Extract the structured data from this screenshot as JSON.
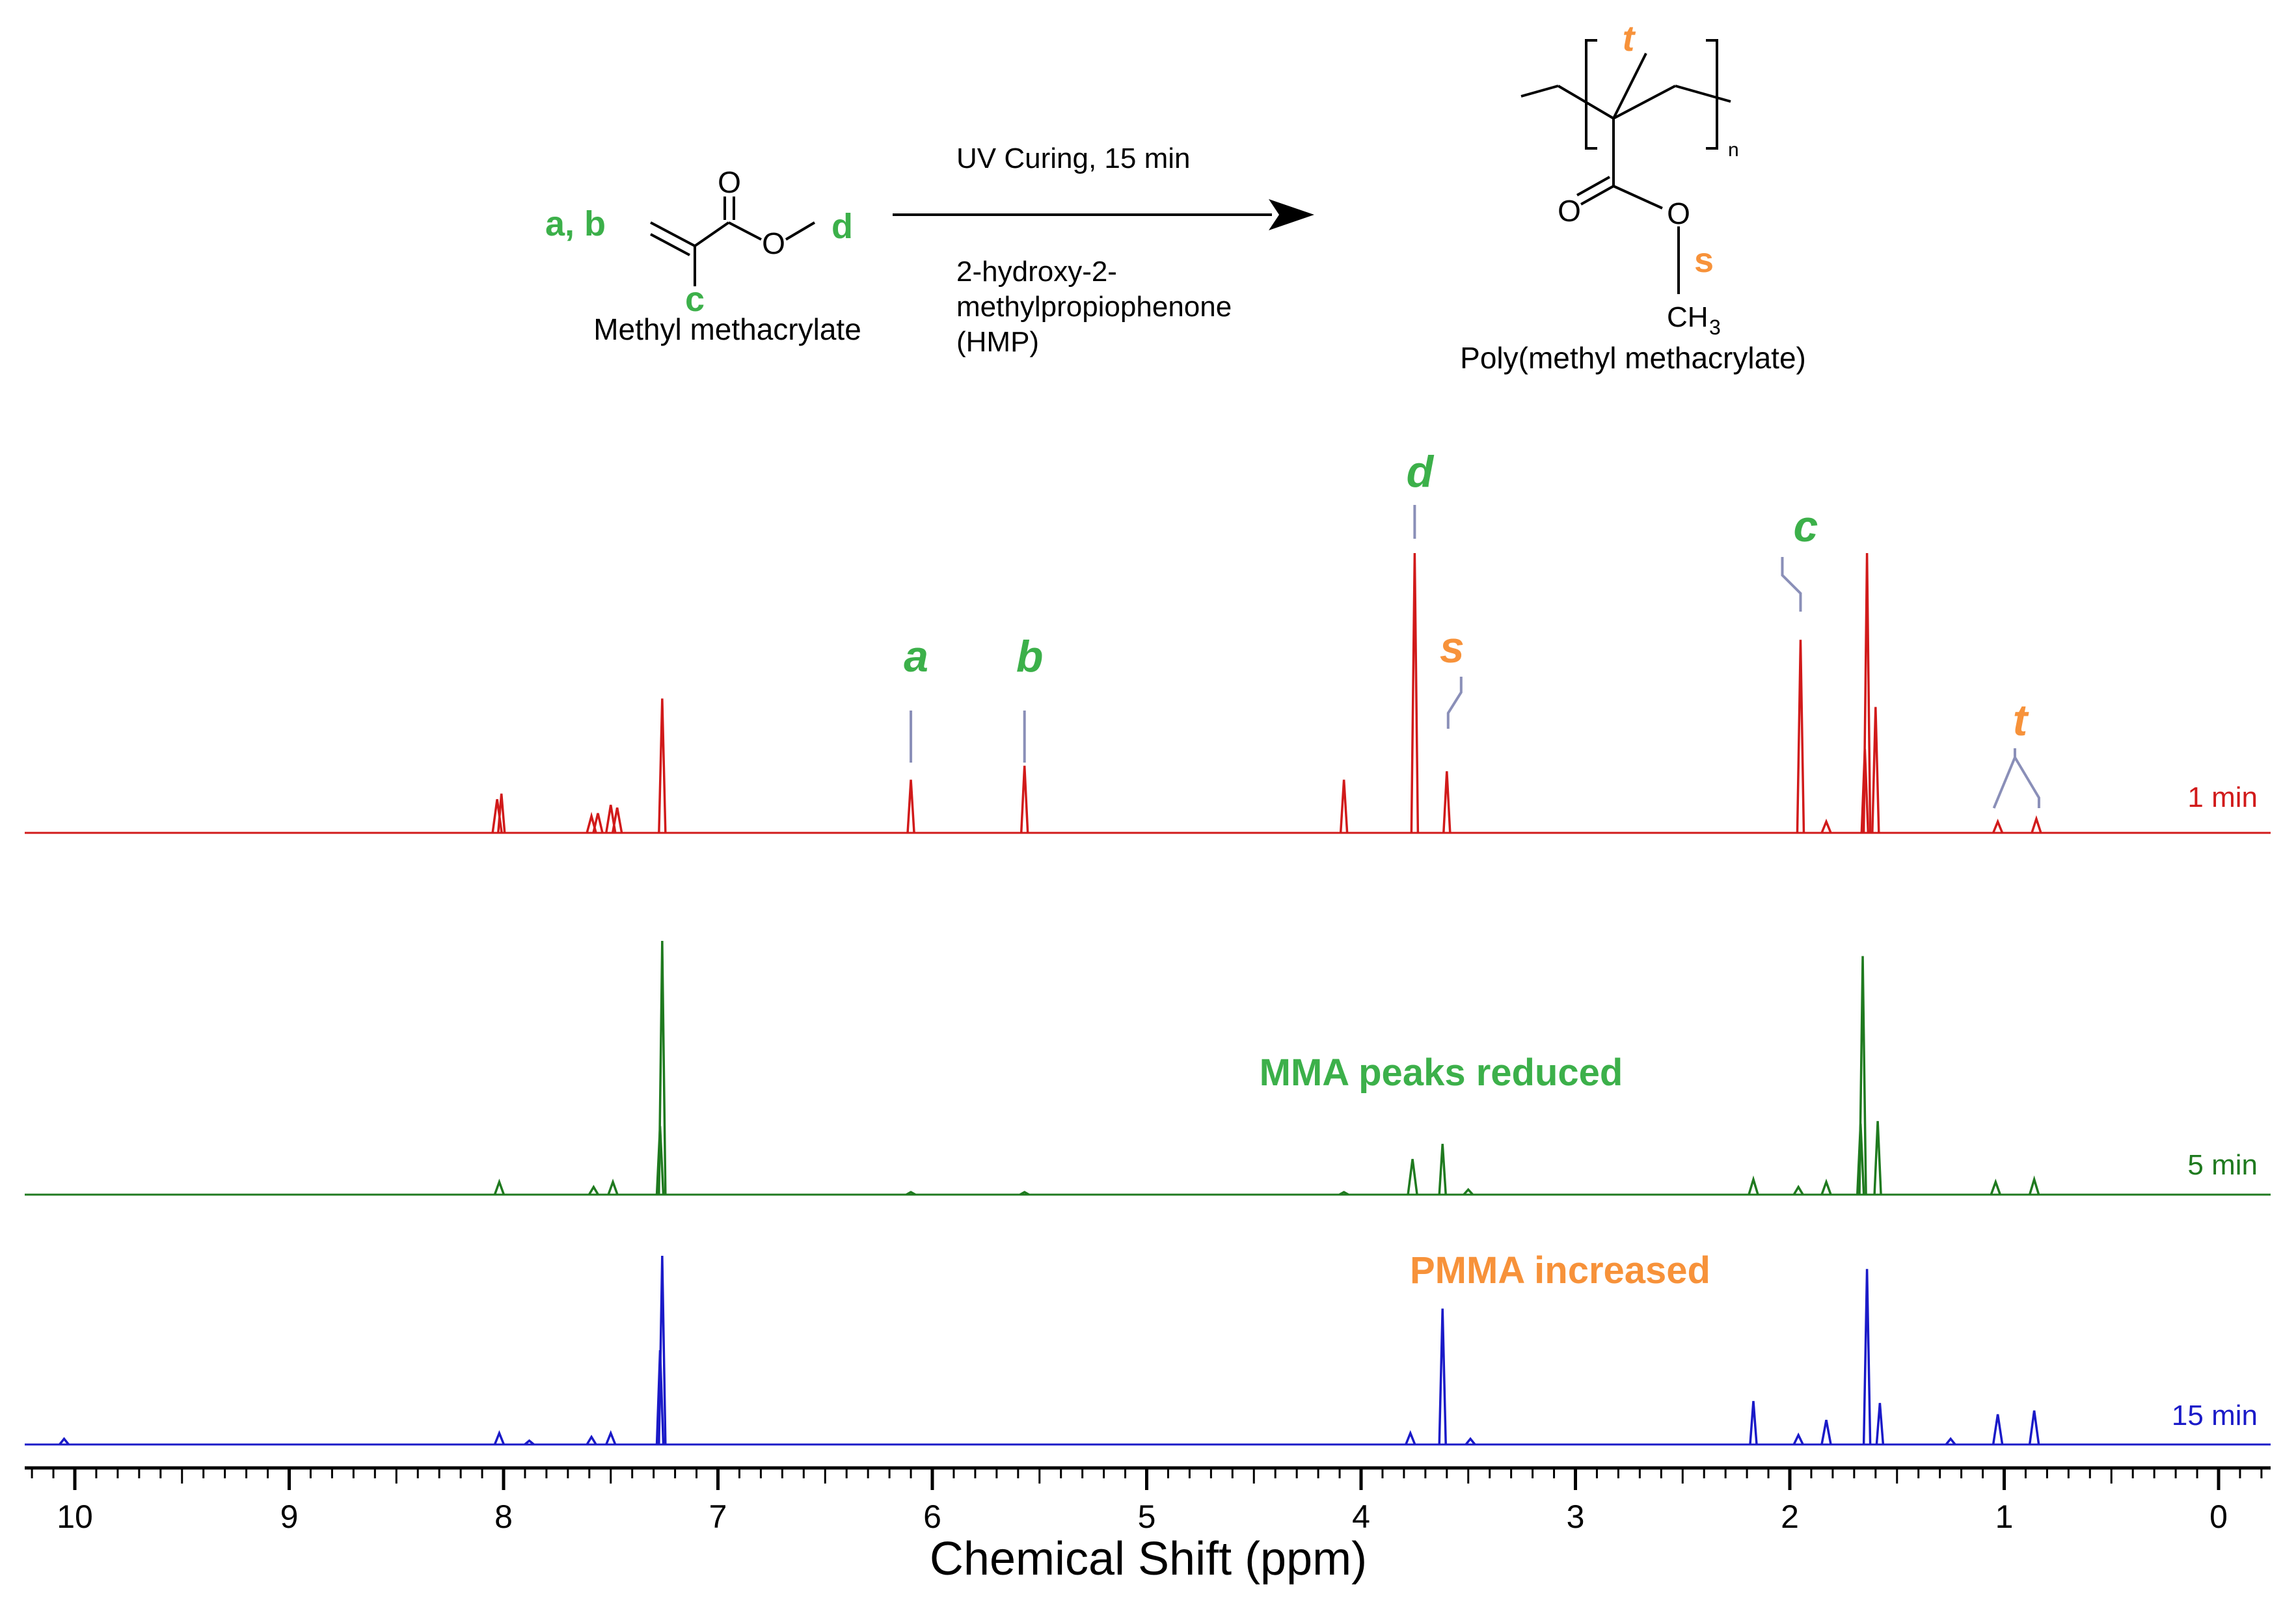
{
  "colors": {
    "red": "#d11a1a",
    "green": "#1f7a1f",
    "blue": "#1a1ac8",
    "label_green": "#3cb04a",
    "label_orange": "#f7923a",
    "leader": "#8a8fb8",
    "axis": "#000000"
  },
  "scheme": {
    "reactant": {
      "name": "Methyl methacrylate",
      "label_ab": "a, b",
      "label_c": "c",
      "label_d": "d",
      "atom_O_carbonyl": "O",
      "atom_O_ester": "O"
    },
    "arrow": {
      "above": "UV Curing, 15 min",
      "below_line1": "2-hydroxy-2-",
      "below_line2": "methylpropiophenone",
      "below_line3": "(HMP)"
    },
    "product": {
      "name": "Poly(methyl methacrylate)",
      "label_t": "t",
      "label_s": "s",
      "subscript_n": "n",
      "atom_O_carbonyl": "O",
      "atom_O_ester": "O",
      "methyl_main": "CH",
      "methyl_sub": "3"
    }
  },
  "chart_data": {
    "type": "line",
    "title": "",
    "xlabel": "Chemical Shift (ppm)",
    "ylabel": "",
    "xlim": [
      10.25,
      -0.25
    ],
    "xticks": [
      10,
      9,
      8,
      7,
      6,
      5,
      4,
      3,
      2,
      1,
      0
    ],
    "x_tick_labels": [
      "10",
      "9",
      "8",
      "7",
      "6",
      "5",
      "4",
      "3",
      "2",
      "1",
      "0"
    ],
    "series": [
      {
        "name": "1 min",
        "color": "#d11a1a",
        "peaks": [
          {
            "ppm": 8.03,
            "height": 0.12
          },
          {
            "ppm": 8.01,
            "height": 0.14
          },
          {
            "ppm": 7.59,
            "height": 0.06
          },
          {
            "ppm": 7.56,
            "height": 0.07
          },
          {
            "ppm": 7.5,
            "height": 0.1
          },
          {
            "ppm": 7.47,
            "height": 0.09
          },
          {
            "ppm": 7.26,
            "height": 0.48
          },
          {
            "ppm": 6.1,
            "height": 0.19
          },
          {
            "ppm": 5.57,
            "height": 0.24
          },
          {
            "ppm": 4.08,
            "height": 0.19
          },
          {
            "ppm": 3.75,
            "height": 1.0
          },
          {
            "ppm": 3.6,
            "height": 0.22
          },
          {
            "ppm": 1.95,
            "height": 0.69
          },
          {
            "ppm": 1.83,
            "height": 0.04
          },
          {
            "ppm": 1.65,
            "height": 0.3
          },
          {
            "ppm": 1.64,
            "height": 1.0
          },
          {
            "ppm": 1.6,
            "height": 0.45
          },
          {
            "ppm": 1.03,
            "height": 0.04
          },
          {
            "ppm": 0.85,
            "height": 0.05
          }
        ],
        "peak_labels": [
          {
            "label": "a",
            "ppm": 6.1,
            "color": "#3cb04a"
          },
          {
            "label": "b",
            "ppm": 5.57,
            "color": "#3cb04a"
          },
          {
            "label": "d",
            "ppm": 3.75,
            "color": "#3cb04a"
          },
          {
            "label": "s",
            "ppm": 3.6,
            "color": "#f7923a"
          },
          {
            "label": "c",
            "ppm": 1.95,
            "color": "#3cb04a"
          },
          {
            "label": "t",
            "ppm": 0.95,
            "color": "#f7923a"
          }
        ]
      },
      {
        "name": "5 min",
        "color": "#1f7a1f",
        "peaks": [
          {
            "ppm": 8.02,
            "height": 0.05
          },
          {
            "ppm": 7.58,
            "height": 0.03
          },
          {
            "ppm": 7.49,
            "height": 0.05
          },
          {
            "ppm": 7.27,
            "height": 0.27
          },
          {
            "ppm": 7.26,
            "height": 1.0
          },
          {
            "ppm": 6.1,
            "height": 0.01
          },
          {
            "ppm": 5.57,
            "height": 0.01
          },
          {
            "ppm": 4.08,
            "height": 0.01
          },
          {
            "ppm": 3.76,
            "height": 0.14
          },
          {
            "ppm": 3.62,
            "height": 0.2
          },
          {
            "ppm": 3.5,
            "height": 0.02
          },
          {
            "ppm": 2.17,
            "height": 0.06
          },
          {
            "ppm": 1.96,
            "height": 0.03
          },
          {
            "ppm": 1.83,
            "height": 0.05
          },
          {
            "ppm": 1.67,
            "height": 0.28
          },
          {
            "ppm": 1.66,
            "height": 0.94
          },
          {
            "ppm": 1.59,
            "height": 0.29
          },
          {
            "ppm": 1.04,
            "height": 0.05
          },
          {
            "ppm": 0.86,
            "height": 0.06
          }
        ],
        "annotation": {
          "text": "MMA peaks reduced",
          "color": "#3cb04a"
        }
      },
      {
        "name": "15 min",
        "color": "#1a1ac8",
        "peaks": [
          {
            "ppm": 10.05,
            "height": 0.03
          },
          {
            "ppm": 8.02,
            "height": 0.06
          },
          {
            "ppm": 7.88,
            "height": 0.02
          },
          {
            "ppm": 7.59,
            "height": 0.04
          },
          {
            "ppm": 7.5,
            "height": 0.06
          },
          {
            "ppm": 7.27,
            "height": 0.5
          },
          {
            "ppm": 7.26,
            "height": 1.0
          },
          {
            "ppm": 3.77,
            "height": 0.06
          },
          {
            "ppm": 3.62,
            "height": 0.72
          },
          {
            "ppm": 3.49,
            "height": 0.03
          },
          {
            "ppm": 2.17,
            "height": 0.23
          },
          {
            "ppm": 1.96,
            "height": 0.05
          },
          {
            "ppm": 1.83,
            "height": 0.13
          },
          {
            "ppm": 1.64,
            "height": 0.93
          },
          {
            "ppm": 1.58,
            "height": 0.22
          },
          {
            "ppm": 1.25,
            "height": 0.03
          },
          {
            "ppm": 1.03,
            "height": 0.16
          },
          {
            "ppm": 0.86,
            "height": 0.18
          }
        ],
        "annotation": {
          "text": "PMMA increased",
          "color": "#f7923a"
        }
      }
    ]
  }
}
